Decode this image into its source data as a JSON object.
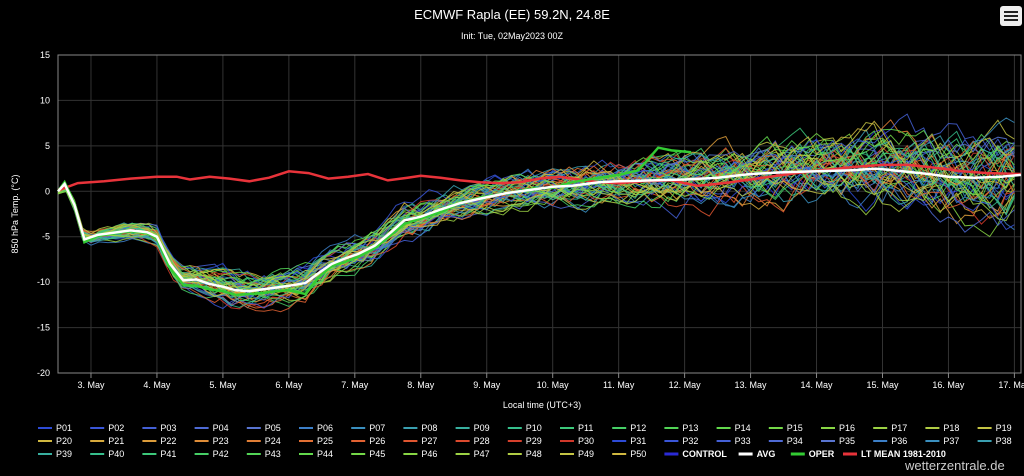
{
  "menu": {
    "icon": "hamburger-menu-icon"
  },
  "watermark": "wetterzentrale.de",
  "chart_data": {
    "type": "line",
    "title": "ECMWF Rapla (EE) 59.2N, 24.8E",
    "subtitle": "Init: Tue, 02May2023 00Z",
    "xlabel": "Local time (UTC+3)",
    "ylabel": "850 hPa Temp. (°C)",
    "ylim": [
      -20,
      15
    ],
    "yticks": [
      "15",
      "10",
      "5",
      "0",
      "-5",
      "-10",
      "-15",
      "-20"
    ],
    "yticks_values": [
      15,
      10,
      5,
      0,
      -5,
      -10,
      -15,
      -20
    ],
    "xlim": [
      2.5,
      17.1
    ],
    "xtick_positions": [
      3,
      4,
      5,
      6,
      7,
      8,
      9,
      10,
      11,
      12,
      13,
      14,
      15,
      16,
      17
    ],
    "xticks": [
      "3. May",
      "4. May",
      "5. May",
      "6. May",
      "7. May",
      "8. May",
      "9. May",
      "10. May",
      "11. May",
      "12. May",
      "13. May",
      "14. May",
      "15. May",
      "16. May",
      "17. May"
    ],
    "grid": true,
    "avg": {
      "name": "AVG",
      "color": "#ffffff",
      "points": [
        [
          2.5,
          0
        ],
        [
          2.6,
          0.8
        ],
        [
          2.75,
          -1.5
        ],
        [
          2.9,
          -5.3
        ],
        [
          3.1,
          -4.8
        ],
        [
          3.3,
          -4.6
        ],
        [
          3.6,
          -4.3
        ],
        [
          3.85,
          -4.5
        ],
        [
          4.0,
          -5.0
        ],
        [
          4.2,
          -8.0
        ],
        [
          4.4,
          -9.8
        ],
        [
          4.6,
          -9.7
        ],
        [
          4.8,
          -10.2
        ],
        [
          5.0,
          -10.5
        ],
        [
          5.2,
          -10.9
        ],
        [
          5.4,
          -11.0
        ],
        [
          5.6,
          -10.8
        ],
        [
          5.8,
          -10.6
        ],
        [
          6.0,
          -10.4
        ],
        [
          6.25,
          -10.1
        ],
        [
          6.45,
          -9.0
        ],
        [
          6.65,
          -8.0
        ],
        [
          6.85,
          -7.4
        ],
        [
          7.05,
          -6.9
        ],
        [
          7.3,
          -6.0
        ],
        [
          7.55,
          -4.5
        ],
        [
          7.75,
          -3.2
        ],
        [
          8.0,
          -2.8
        ],
        [
          8.3,
          -2.0
        ],
        [
          8.6,
          -1.3
        ],
        [
          8.9,
          -0.8
        ],
        [
          9.3,
          -0.2
        ],
        [
          9.7,
          0.2
        ],
        [
          10.0,
          0.5
        ],
        [
          10.3,
          0.6
        ],
        [
          10.7,
          1.0
        ],
        [
          11.0,
          1.1
        ],
        [
          11.5,
          1.2
        ],
        [
          12.0,
          1.3
        ],
        [
          12.5,
          1.5
        ],
        [
          13.0,
          1.9
        ],
        [
          13.5,
          2.1
        ],
        [
          14.0,
          2.2
        ],
        [
          14.5,
          2.3
        ],
        [
          14.9,
          2.5
        ],
        [
          15.3,
          2.2
        ],
        [
          15.7,
          1.9
        ],
        [
          16.0,
          1.6
        ],
        [
          16.4,
          1.5
        ],
        [
          16.8,
          1.6
        ],
        [
          17.1,
          1.8
        ]
      ]
    },
    "oper": {
      "name": "OPER",
      "color": "#33cc33",
      "points": [
        [
          2.5,
          0
        ],
        [
          2.6,
          1.0
        ],
        [
          2.75,
          -1.3
        ],
        [
          2.9,
          -5.6
        ],
        [
          3.1,
          -4.9
        ],
        [
          3.3,
          -4.7
        ],
        [
          3.6,
          -4.4
        ],
        [
          3.85,
          -4.6
        ],
        [
          4.0,
          -5.2
        ],
        [
          4.2,
          -8.5
        ],
        [
          4.4,
          -10.3
        ],
        [
          4.6,
          -10.4
        ],
        [
          4.8,
          -10.8
        ],
        [
          5.0,
          -11.0
        ],
        [
          5.2,
          -11.4
        ],
        [
          5.4,
          -11.3
        ],
        [
          5.6,
          -11.2
        ],
        [
          5.8,
          -11.0
        ],
        [
          6.0,
          -10.9
        ],
        [
          6.25,
          -11.3
        ],
        [
          6.45,
          -9.5
        ],
        [
          6.65,
          -8.2
        ],
        [
          6.85,
          -7.8
        ],
        [
          7.05,
          -7.2
        ],
        [
          7.3,
          -6.3
        ],
        [
          7.55,
          -4.8
        ],
        [
          7.75,
          -3.6
        ],
        [
          8.0,
          -3.0
        ],
        [
          8.3,
          -2.3
        ],
        [
          8.6,
          -1.3
        ],
        [
          8.9,
          -0.7
        ],
        [
          9.3,
          -0.2
        ],
        [
          9.7,
          0.3
        ],
        [
          10.0,
          0.4
        ],
        [
          10.3,
          1.0
        ],
        [
          10.7,
          1.5
        ],
        [
          11.0,
          1.8
        ],
        [
          11.3,
          2.3
        ],
        [
          11.6,
          4.8
        ],
        [
          11.8,
          4.5
        ],
        [
          12.1,
          4.3
        ]
      ]
    },
    "lt_mean": {
      "name": "LT MEAN 1981-2010",
      "color": "#e8333a",
      "points": [
        [
          2.5,
          0.1
        ],
        [
          2.8,
          0.9
        ],
        [
          3.2,
          1.1
        ],
        [
          3.6,
          1.4
        ],
        [
          4.0,
          1.6
        ],
        [
          4.3,
          1.6
        ],
        [
          4.5,
          1.3
        ],
        [
          4.8,
          1.6
        ],
        [
          5.1,
          1.4
        ],
        [
          5.4,
          1.1
        ],
        [
          5.7,
          1.5
        ],
        [
          6.0,
          2.2
        ],
        [
          6.3,
          2.0
        ],
        [
          6.6,
          1.4
        ],
        [
          6.9,
          1.6
        ],
        [
          7.2,
          1.9
        ],
        [
          7.5,
          1.2
        ],
        [
          7.8,
          1.5
        ],
        [
          8.0,
          1.7
        ],
        [
          8.3,
          1.5
        ],
        [
          8.6,
          1.2
        ],
        [
          8.9,
          1.0
        ],
        [
          9.2,
          0.9
        ],
        [
          9.5,
          1.0
        ],
        [
          9.8,
          1.4
        ],
        [
          10.1,
          1.6
        ],
        [
          10.4,
          1.3
        ],
        [
          10.7,
          1.0
        ],
        [
          11.0,
          0.9
        ],
        [
          11.4,
          1.1
        ],
        [
          11.8,
          1.2
        ],
        [
          12.2,
          0.6
        ],
        [
          12.6,
          0.9
        ],
        [
          13.0,
          1.3
        ],
        [
          13.4,
          1.7
        ],
        [
          13.8,
          2.1
        ],
        [
          14.2,
          2.4
        ],
        [
          14.6,
          2.7
        ],
        [
          15.0,
          2.9
        ],
        [
          15.4,
          2.9
        ],
        [
          15.8,
          2.6
        ],
        [
          16.2,
          2.2
        ],
        [
          16.6,
          2.0
        ],
        [
          17.1,
          1.9
        ]
      ]
    },
    "members": {
      "count": 51,
      "colors": [
        "#2d4bd6",
        "#3a56d8",
        "#4460d6",
        "#4e6ad4",
        "#5874d0",
        "#3c7fc8",
        "#3a8fbf",
        "#3a9fb0",
        "#38af9f",
        "#36bf8c",
        "#3cc87a",
        "#46cf66",
        "#52d456",
        "#62d84c",
        "#74d848",
        "#88d644",
        "#9cd244",
        "#b0cc44",
        "#c4c444",
        "#d0b840",
        "#d8aa3c",
        "#dc9c3a",
        "#df8d38",
        "#e07e36",
        "#e27034",
        "#e26232",
        "#e05630",
        "#dc4a2e",
        "#d6402c",
        "#d0382a"
      ],
      "control_color": "#2a2ad6",
      "note": "ensemble spread per day in degrees C around AVG",
      "spread_by_day": [
        [
          3,
          1.0
        ],
        [
          4,
          1.5
        ],
        [
          5,
          2.5
        ],
        [
          6,
          2.5
        ],
        [
          7,
          2.5
        ],
        [
          8,
          2.5
        ],
        [
          9,
          2.5
        ],
        [
          10,
          3.0
        ],
        [
          11,
          3.5
        ],
        [
          12,
          4.0
        ],
        [
          13,
          4.5
        ],
        [
          14,
          5.0
        ],
        [
          15,
          5.5
        ],
        [
          16,
          6.0
        ],
        [
          17,
          6.5
        ]
      ]
    },
    "legend": {
      "placement": "bottom",
      "rows": [
        [
          "P01",
          "P02",
          "P03",
          "P04",
          "P05",
          "P06",
          "P07",
          "P08",
          "P09",
          "P10",
          "P11",
          "P12",
          "P13",
          "P14",
          "P15",
          "P16",
          "P17",
          "P18",
          "P19"
        ],
        [
          "P20",
          "P21",
          "P22",
          "P23",
          "P24",
          "P25",
          "P26",
          "P27",
          "P28",
          "P29",
          "P30",
          "P31",
          "P32",
          "P33",
          "P34",
          "P35",
          "P36",
          "P37",
          "P38"
        ],
        [
          "P39",
          "P40",
          "P41",
          "P42",
          "P43",
          "P44",
          "P45",
          "P46",
          "P47",
          "P48",
          "P49",
          "P50",
          "CONTROL",
          "AVG",
          "OPER",
          "LT MEAN 1981-2010"
        ]
      ],
      "colors": [
        "#2d4bd6",
        "#3a56d8",
        "#4460d6",
        "#4e6ad4",
        "#5874d0",
        "#3c7fc8",
        "#3a8fbf",
        "#3a9fb0",
        "#38af9f",
        "#36bf8c",
        "#3cc87a",
        "#46cf66",
        "#52d456",
        "#62d84c",
        "#74d848",
        "#88d644",
        "#9cd244",
        "#b0cc44",
        "#c4c444",
        "#d0b840",
        "#d8aa3c",
        "#dc9c3a",
        "#df8d38",
        "#e07e36",
        "#e27034",
        "#e26232",
        "#e05630",
        "#dc4a2e",
        "#d6402c",
        "#d0382a"
      ],
      "special_colors": {
        "CONTROL": "#2a2ad6",
        "AVG": "#ffffff",
        "OPER": "#33cc33",
        "LT MEAN 1981-2010": "#e8333a"
      }
    }
  }
}
